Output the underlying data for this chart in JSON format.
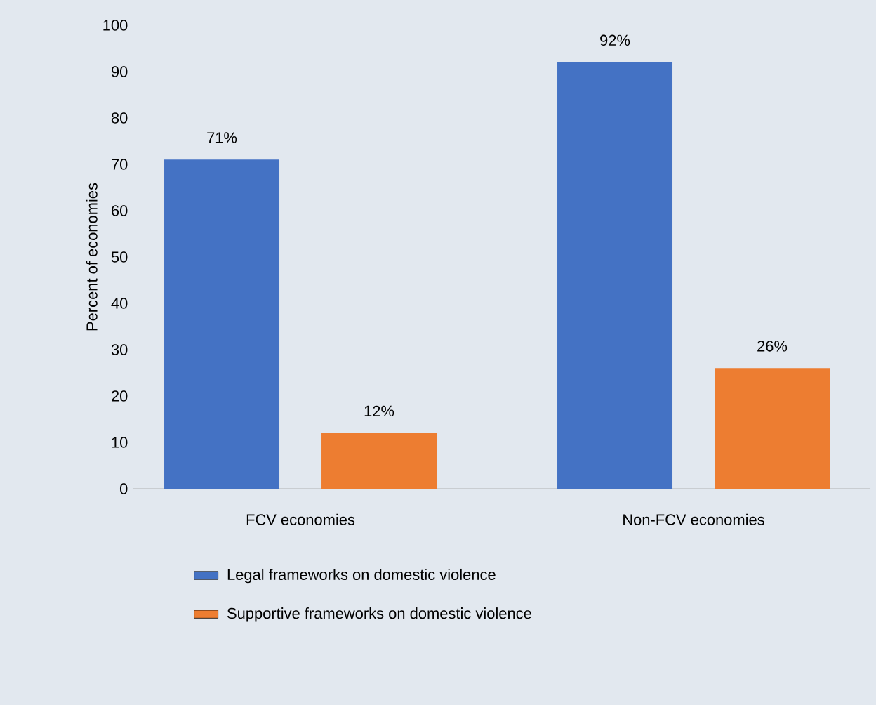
{
  "chart_data": {
    "type": "bar",
    "ylabel": "Percent of economies",
    "categories": [
      "FCV economies",
      "Non-FCV economies"
    ],
    "series": [
      {
        "name": "Legal frameworks on domestic violence",
        "color": "#4472c4",
        "values": [
          71,
          92
        ],
        "value_labels": [
          "71%",
          "92%"
        ]
      },
      {
        "name": "Supportive frameworks on domestic violence",
        "color": "#ed7d31",
        "values": [
          12,
          26
        ],
        "value_labels": [
          "12%",
          "26%"
        ]
      }
    ],
    "ylim": [
      0,
      100
    ],
    "yticks": [
      0,
      10,
      20,
      30,
      40,
      50,
      60,
      70,
      80,
      90,
      100
    ],
    "legend": "bottom"
  }
}
